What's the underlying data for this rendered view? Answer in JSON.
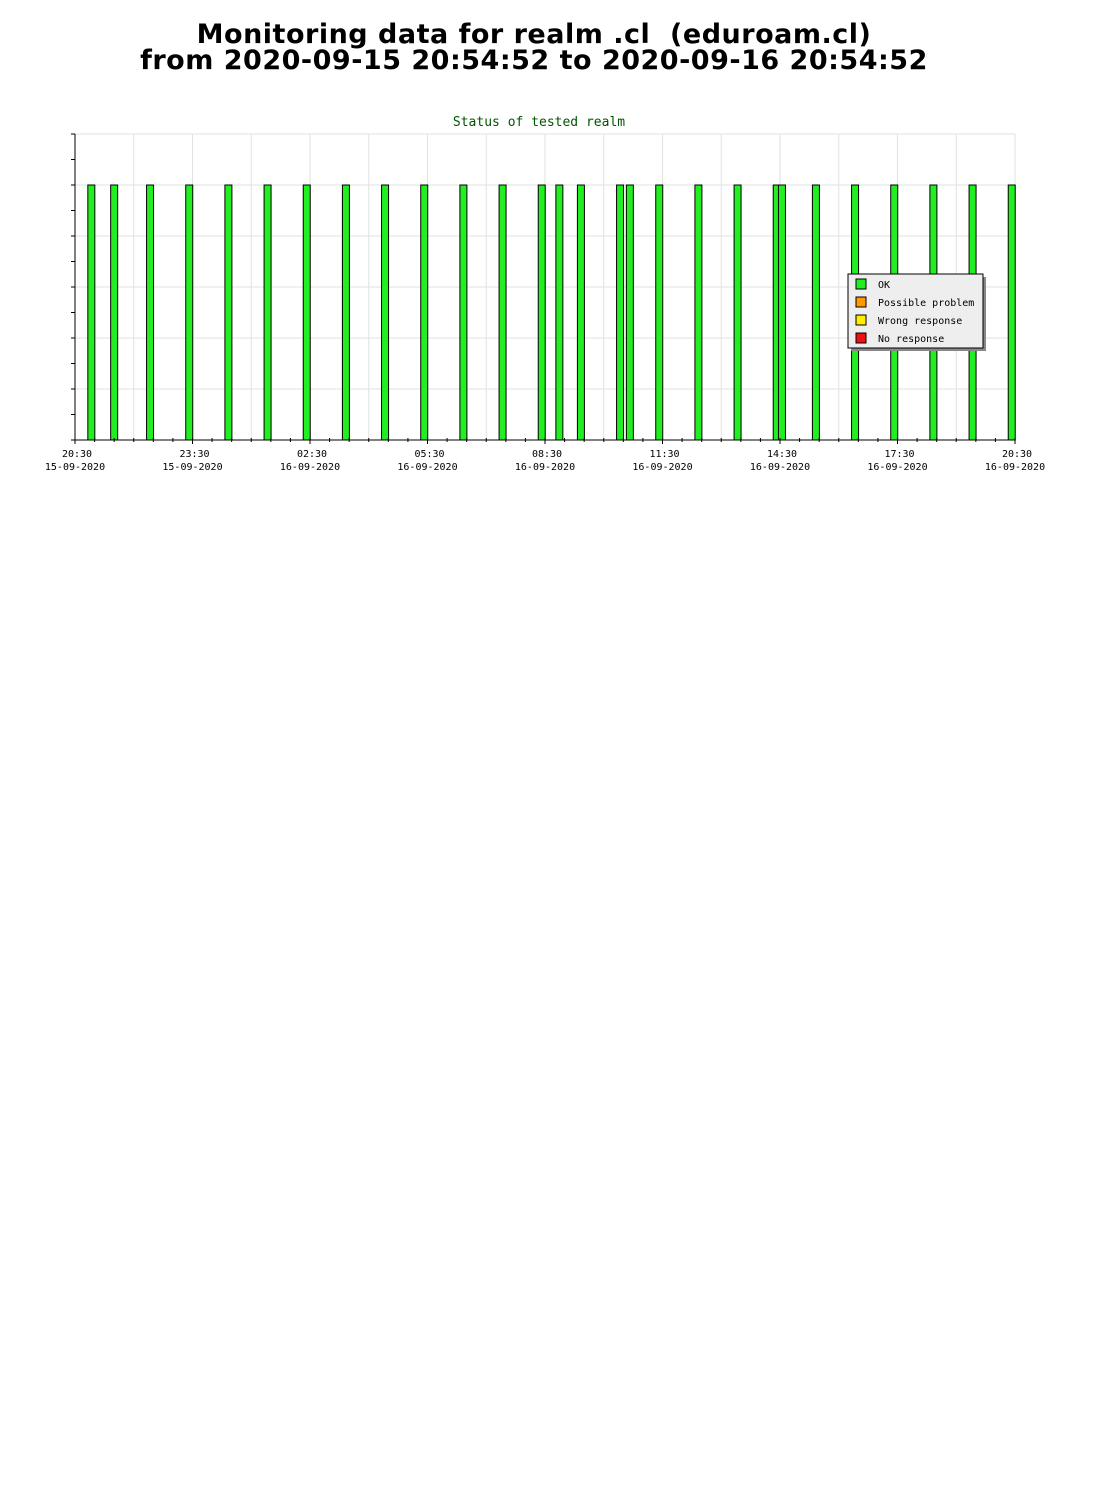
{
  "page": {
    "title_line1": "Monitoring data for realm .cl  (eduroam.cl)",
    "title_line2": "from 2020-09-15 20:54:52 to 2020-09-16 20:54:52"
  },
  "chart_data": {
    "type": "bar",
    "title": "Status of tested realm",
    "xlabel": "",
    "ylabel": "",
    "x_start": "2020-09-15 20:30",
    "x_end": "2020-09-16 20:30",
    "ylim": [
      0,
      6
    ],
    "grid": true,
    "legend_position": "right",
    "x_ticks": [
      {
        "time": "20:30",
        "date": "15-09-2020"
      },
      {
        "time": "23:30",
        "date": "15-09-2020"
      },
      {
        "time": "02:30",
        "date": "16-09-2020"
      },
      {
        "time": "05:30",
        "date": "16-09-2020"
      },
      {
        "time": "08:30",
        "date": "16-09-2020"
      },
      {
        "time": "11:30",
        "date": "16-09-2020"
      },
      {
        "time": "14:30",
        "date": "16-09-2020"
      },
      {
        "time": "17:30",
        "date": "16-09-2020"
      },
      {
        "time": "20:30",
        "date": "16-09-2020"
      }
    ],
    "series": [
      {
        "name": "OK",
        "color": "#22ee22",
        "points": [
          {
            "x": "2020-09-15 20:55",
            "y": 5
          },
          {
            "x": "2020-09-15 21:30",
            "y": 5
          },
          {
            "x": "2020-09-15 22:25",
            "y": 5
          },
          {
            "x": "2020-09-15 23:25",
            "y": 5
          },
          {
            "x": "2020-09-16 00:25",
            "y": 5
          },
          {
            "x": "2020-09-16 01:25",
            "y": 5
          },
          {
            "x": "2020-09-16 02:25",
            "y": 5
          },
          {
            "x": "2020-09-16 03:25",
            "y": 5
          },
          {
            "x": "2020-09-16 04:25",
            "y": 5
          },
          {
            "x": "2020-09-16 05:25",
            "y": 5
          },
          {
            "x": "2020-09-16 06:25",
            "y": 5
          },
          {
            "x": "2020-09-16 07:25",
            "y": 5
          },
          {
            "x": "2020-09-16 08:25",
            "y": 5
          },
          {
            "x": "2020-09-16 08:52",
            "y": 5
          },
          {
            "x": "2020-09-16 09:25",
            "y": 5
          },
          {
            "x": "2020-09-16 10:25",
            "y": 5
          },
          {
            "x": "2020-09-16 10:40",
            "y": 5
          },
          {
            "x": "2020-09-16 11:25",
            "y": 5
          },
          {
            "x": "2020-09-16 12:25",
            "y": 5
          },
          {
            "x": "2020-09-16 13:25",
            "y": 5
          },
          {
            "x": "2020-09-16 14:25",
            "y": 5
          },
          {
            "x": "2020-09-16 14:33",
            "y": 5
          },
          {
            "x": "2020-09-16 15:25",
            "y": 5
          },
          {
            "x": "2020-09-16 16:25",
            "y": 5
          },
          {
            "x": "2020-09-16 17:25",
            "y": 5
          },
          {
            "x": "2020-09-16 18:25",
            "y": 5
          },
          {
            "x": "2020-09-16 19:25",
            "y": 5
          },
          {
            "x": "2020-09-16 20:25",
            "y": 5
          }
        ]
      },
      {
        "name": "Possible problem",
        "color": "#ff9900",
        "points": []
      },
      {
        "name": "Wrong response",
        "color": "#ffee00",
        "points": []
      },
      {
        "name": "No response",
        "color": "#ee1111",
        "points": []
      }
    ]
  }
}
